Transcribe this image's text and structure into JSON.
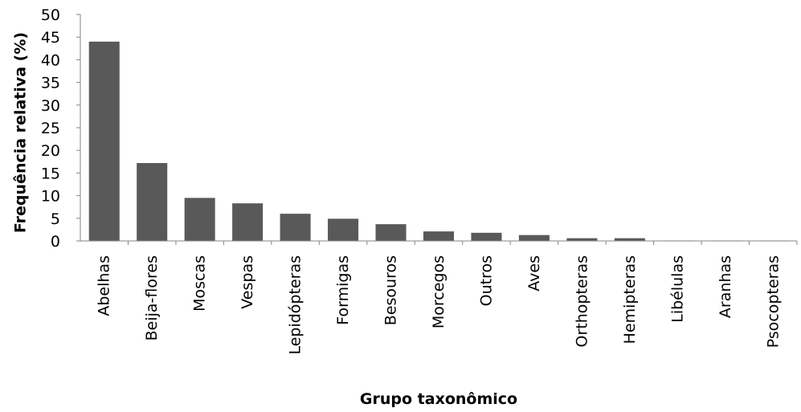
{
  "chart_data": {
    "type": "bar",
    "title": "",
    "xlabel": "Grupo taxonômico",
    "ylabel": "Frequência relativa (%)",
    "ylim": [
      0,
      50
    ],
    "yticks": [
      "0",
      "5",
      "10",
      "15",
      "20",
      "25",
      "30",
      "35",
      "40",
      "45",
      "50"
    ],
    "grid": false,
    "bar_color": "#595959",
    "categories": [
      "Abelhas",
      "Beija-flores",
      "Moscas",
      "Vespas",
      "Lepidópteras",
      "Formigas",
      "Besouros",
      "Morcegos",
      "Outros",
      "Aves",
      "Orthopteras",
      "Hemipteras",
      "Libélulas",
      "Aranhas",
      "Psocopteras"
    ],
    "values": [
      44,
      17.2,
      9.5,
      8.3,
      6,
      4.9,
      3.7,
      2.1,
      1.8,
      1.3,
      0.6,
      0.6,
      0.1,
      0.1,
      0.1
    ]
  }
}
